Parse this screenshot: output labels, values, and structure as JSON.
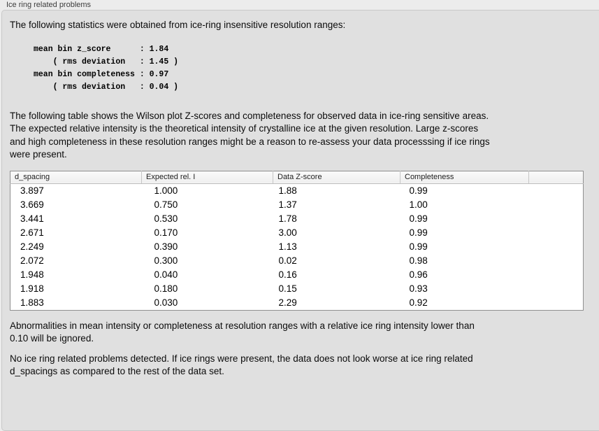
{
  "window": {
    "group_label": "Ice ring related problems"
  },
  "colors": {
    "page_bg": "#ececec",
    "panel_bg": "#e0e0e0",
    "table_bg": "#ffffff",
    "table_border": "#8f8f8f"
  },
  "intro": {
    "text": "The following statistics were obtained from ice-ring insensitive resolution ranges:"
  },
  "stats_block": {
    "text": "mean bin z_score      : 1.84\n    ( rms deviation   : 1.45 )\nmean bin completeness : 0.97\n    ( rms deviation   : 0.04 )",
    "mean_bin_z_score": "1.84",
    "z_score_rms_deviation": "1.45",
    "mean_bin_completeness": "0.97",
    "completeness_rms_deviation": "0.04"
  },
  "table_description": {
    "text": "The following table shows the Wilson plot Z-scores and completeness for observed data in ice-ring sensitive areas.\nThe expected relative intensity is the theoretical intensity of crystalline ice at the given resolution. Large z-scores\nand high completeness in these resolution ranges might be a reason to re-assess your data processsing if ice rings\nwere present."
  },
  "table": {
    "headers": [
      "d_spacing",
      "Expected rel. I",
      "Data Z-score",
      "Completeness"
    ],
    "rows": [
      [
        "3.897",
        "1.000",
        "1.88",
        "0.99"
      ],
      [
        "3.669",
        "0.750",
        "1.37",
        "1.00"
      ],
      [
        "3.441",
        "0.530",
        "1.78",
        "0.99"
      ],
      [
        "2.671",
        "0.170",
        "3.00",
        "0.99"
      ],
      [
        "2.249",
        "0.390",
        "1.13",
        "0.99"
      ],
      [
        "2.072",
        "0.300",
        "0.02",
        "0.98"
      ],
      [
        "1.948",
        "0.040",
        "0.16",
        "0.96"
      ],
      [
        "1.918",
        "0.180",
        "0.15",
        "0.93"
      ],
      [
        "1.883",
        "0.030",
        "2.29",
        "0.92"
      ]
    ]
  },
  "notes": {
    "ignore_note": "Abnormalities in mean intensity or completeness at resolution ranges with a relative ice ring intensity lower than\n0.10 will be ignored.",
    "conclusion": "No ice ring related problems detected. If ice rings were present, the data does not look worse at ice ring related\nd_spacings as compared to the rest of the data set."
  }
}
